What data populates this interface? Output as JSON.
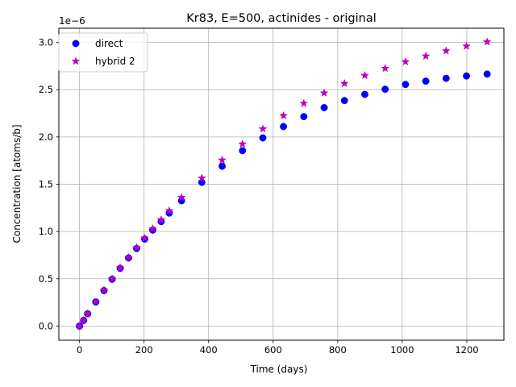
{
  "chart_data": {
    "type": "scatter",
    "title": "Kr83, E=500, actinides - original",
    "xlabel": "Time (days)",
    "ylabel": "Concentration [atoms/b]",
    "y_multiplier_label": "1e−6",
    "xlim": [
      -64,
      1315
    ],
    "ylim": [
      -0.15,
      3.15
    ],
    "y_unit_scale": 1e-06,
    "x_ticks": [
      0,
      200,
      400,
      600,
      800,
      1000,
      1200
    ],
    "y_ticks": [
      0.0,
      0.5,
      1.0,
      1.5,
      2.0,
      2.5,
      3.0
    ],
    "y_tick_labels": [
      "0.0",
      "0.5",
      "1.0",
      "1.5",
      "2.0",
      "2.5",
      "3.0"
    ],
    "grid": true,
    "legend_position": "upper-left",
    "series": [
      {
        "name": "direct",
        "marker": "circle",
        "color": "#0000ff",
        "points": [
          [
            0,
            0.0
          ],
          [
            12.6,
            0.06
          ],
          [
            25.3,
            0.13
          ],
          [
            50.5,
            0.255
          ],
          [
            75.8,
            0.375
          ],
          [
            101,
            0.495
          ],
          [
            126,
            0.61
          ],
          [
            152,
            0.72
          ],
          [
            177,
            0.82
          ],
          [
            202,
            0.92
          ],
          [
            227,
            1.015
          ],
          [
            253,
            1.105
          ],
          [
            278,
            1.195
          ],
          [
            316,
            1.325
          ],
          [
            379,
            1.52
          ],
          [
            442,
            1.69
          ],
          [
            505,
            1.855
          ],
          [
            568,
            1.99
          ],
          [
            632,
            2.11
          ],
          [
            695,
            2.215
          ],
          [
            758,
            2.31
          ],
          [
            821,
            2.385
          ],
          [
            884,
            2.45
          ],
          [
            947,
            2.505
          ],
          [
            1010,
            2.555
          ],
          [
            1073,
            2.59
          ],
          [
            1136,
            2.62
          ],
          [
            1199,
            2.645
          ],
          [
            1263,
            2.665
          ]
        ]
      },
      {
        "name": "hybrid 2",
        "marker": "star",
        "color": "#bf00bf",
        "points": [
          [
            0,
            0.0
          ],
          [
            12.6,
            0.06
          ],
          [
            25.3,
            0.13
          ],
          [
            50.5,
            0.255
          ],
          [
            75.8,
            0.38
          ],
          [
            101,
            0.5
          ],
          [
            126,
            0.615
          ],
          [
            152,
            0.725
          ],
          [
            177,
            0.83
          ],
          [
            202,
            0.93
          ],
          [
            227,
            1.03
          ],
          [
            253,
            1.125
          ],
          [
            278,
            1.22
          ],
          [
            316,
            1.36
          ],
          [
            379,
            1.565
          ],
          [
            442,
            1.755
          ],
          [
            505,
            1.925
          ],
          [
            568,
            2.085
          ],
          [
            632,
            2.225
          ],
          [
            695,
            2.355
          ],
          [
            758,
            2.465
          ],
          [
            821,
            2.565
          ],
          [
            884,
            2.65
          ],
          [
            947,
            2.725
          ],
          [
            1010,
            2.795
          ],
          [
            1073,
            2.855
          ],
          [
            1136,
            2.91
          ],
          [
            1199,
            2.96
          ],
          [
            1263,
            3.005
          ]
        ]
      }
    ]
  }
}
